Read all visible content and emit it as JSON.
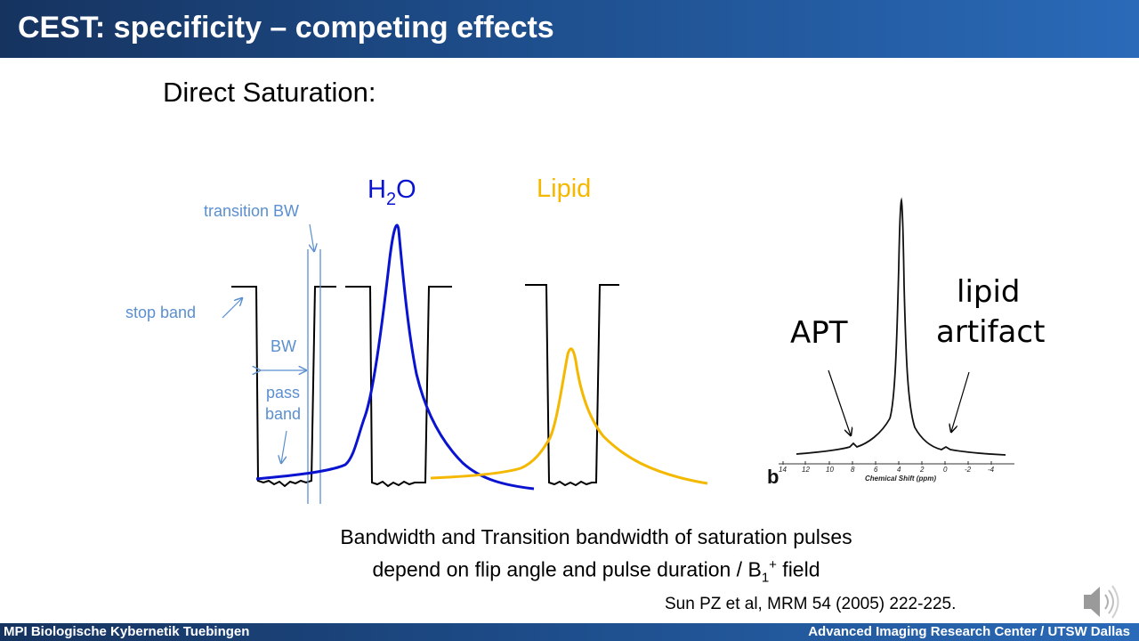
{
  "header": {
    "title": "CEST: specificity – competing effects"
  },
  "section_title": "Direct Saturation:",
  "diagram": {
    "h2o_label_main": "H",
    "h2o_label_sub": "2",
    "h2o_label_tail": "O",
    "lipid_label": "Lipid",
    "transition_bw": "transition BW",
    "stop_band": "stop band",
    "bw": "BW",
    "pass_band_1": "pass",
    "pass_band_2": "band",
    "colors": {
      "h2o": "#0a14d0",
      "lipid": "#f5b800",
      "annotation": "#5b8fd0"
    }
  },
  "spectrum": {
    "apt_label": "APT",
    "lipid_artifact_1": "lipid",
    "lipid_artifact_2": "artifact",
    "panel_letter": "b",
    "axis_title": "Chemical Shift (ppm)",
    "ticks": [
      "14",
      "12",
      "10",
      "8",
      "6",
      "4",
      "2",
      "0",
      "-2",
      "-4"
    ]
  },
  "caption": {
    "line1": "Bandwidth and Transition bandwidth of saturation pulses",
    "line2_pre": "depend on flip angle and pulse duration / B",
    "line2_sub": "1",
    "line2_sup": "+",
    "line2_post": " field"
  },
  "citation": "Sun PZ et al, MRM 54 (2005) 222-225.",
  "footer": {
    "left": "MPI Biologische Kybernetik Tuebingen",
    "right": "Advanced Imaging Research Center / UTSW Dallas"
  },
  "audio_icon": "speaker-icon"
}
